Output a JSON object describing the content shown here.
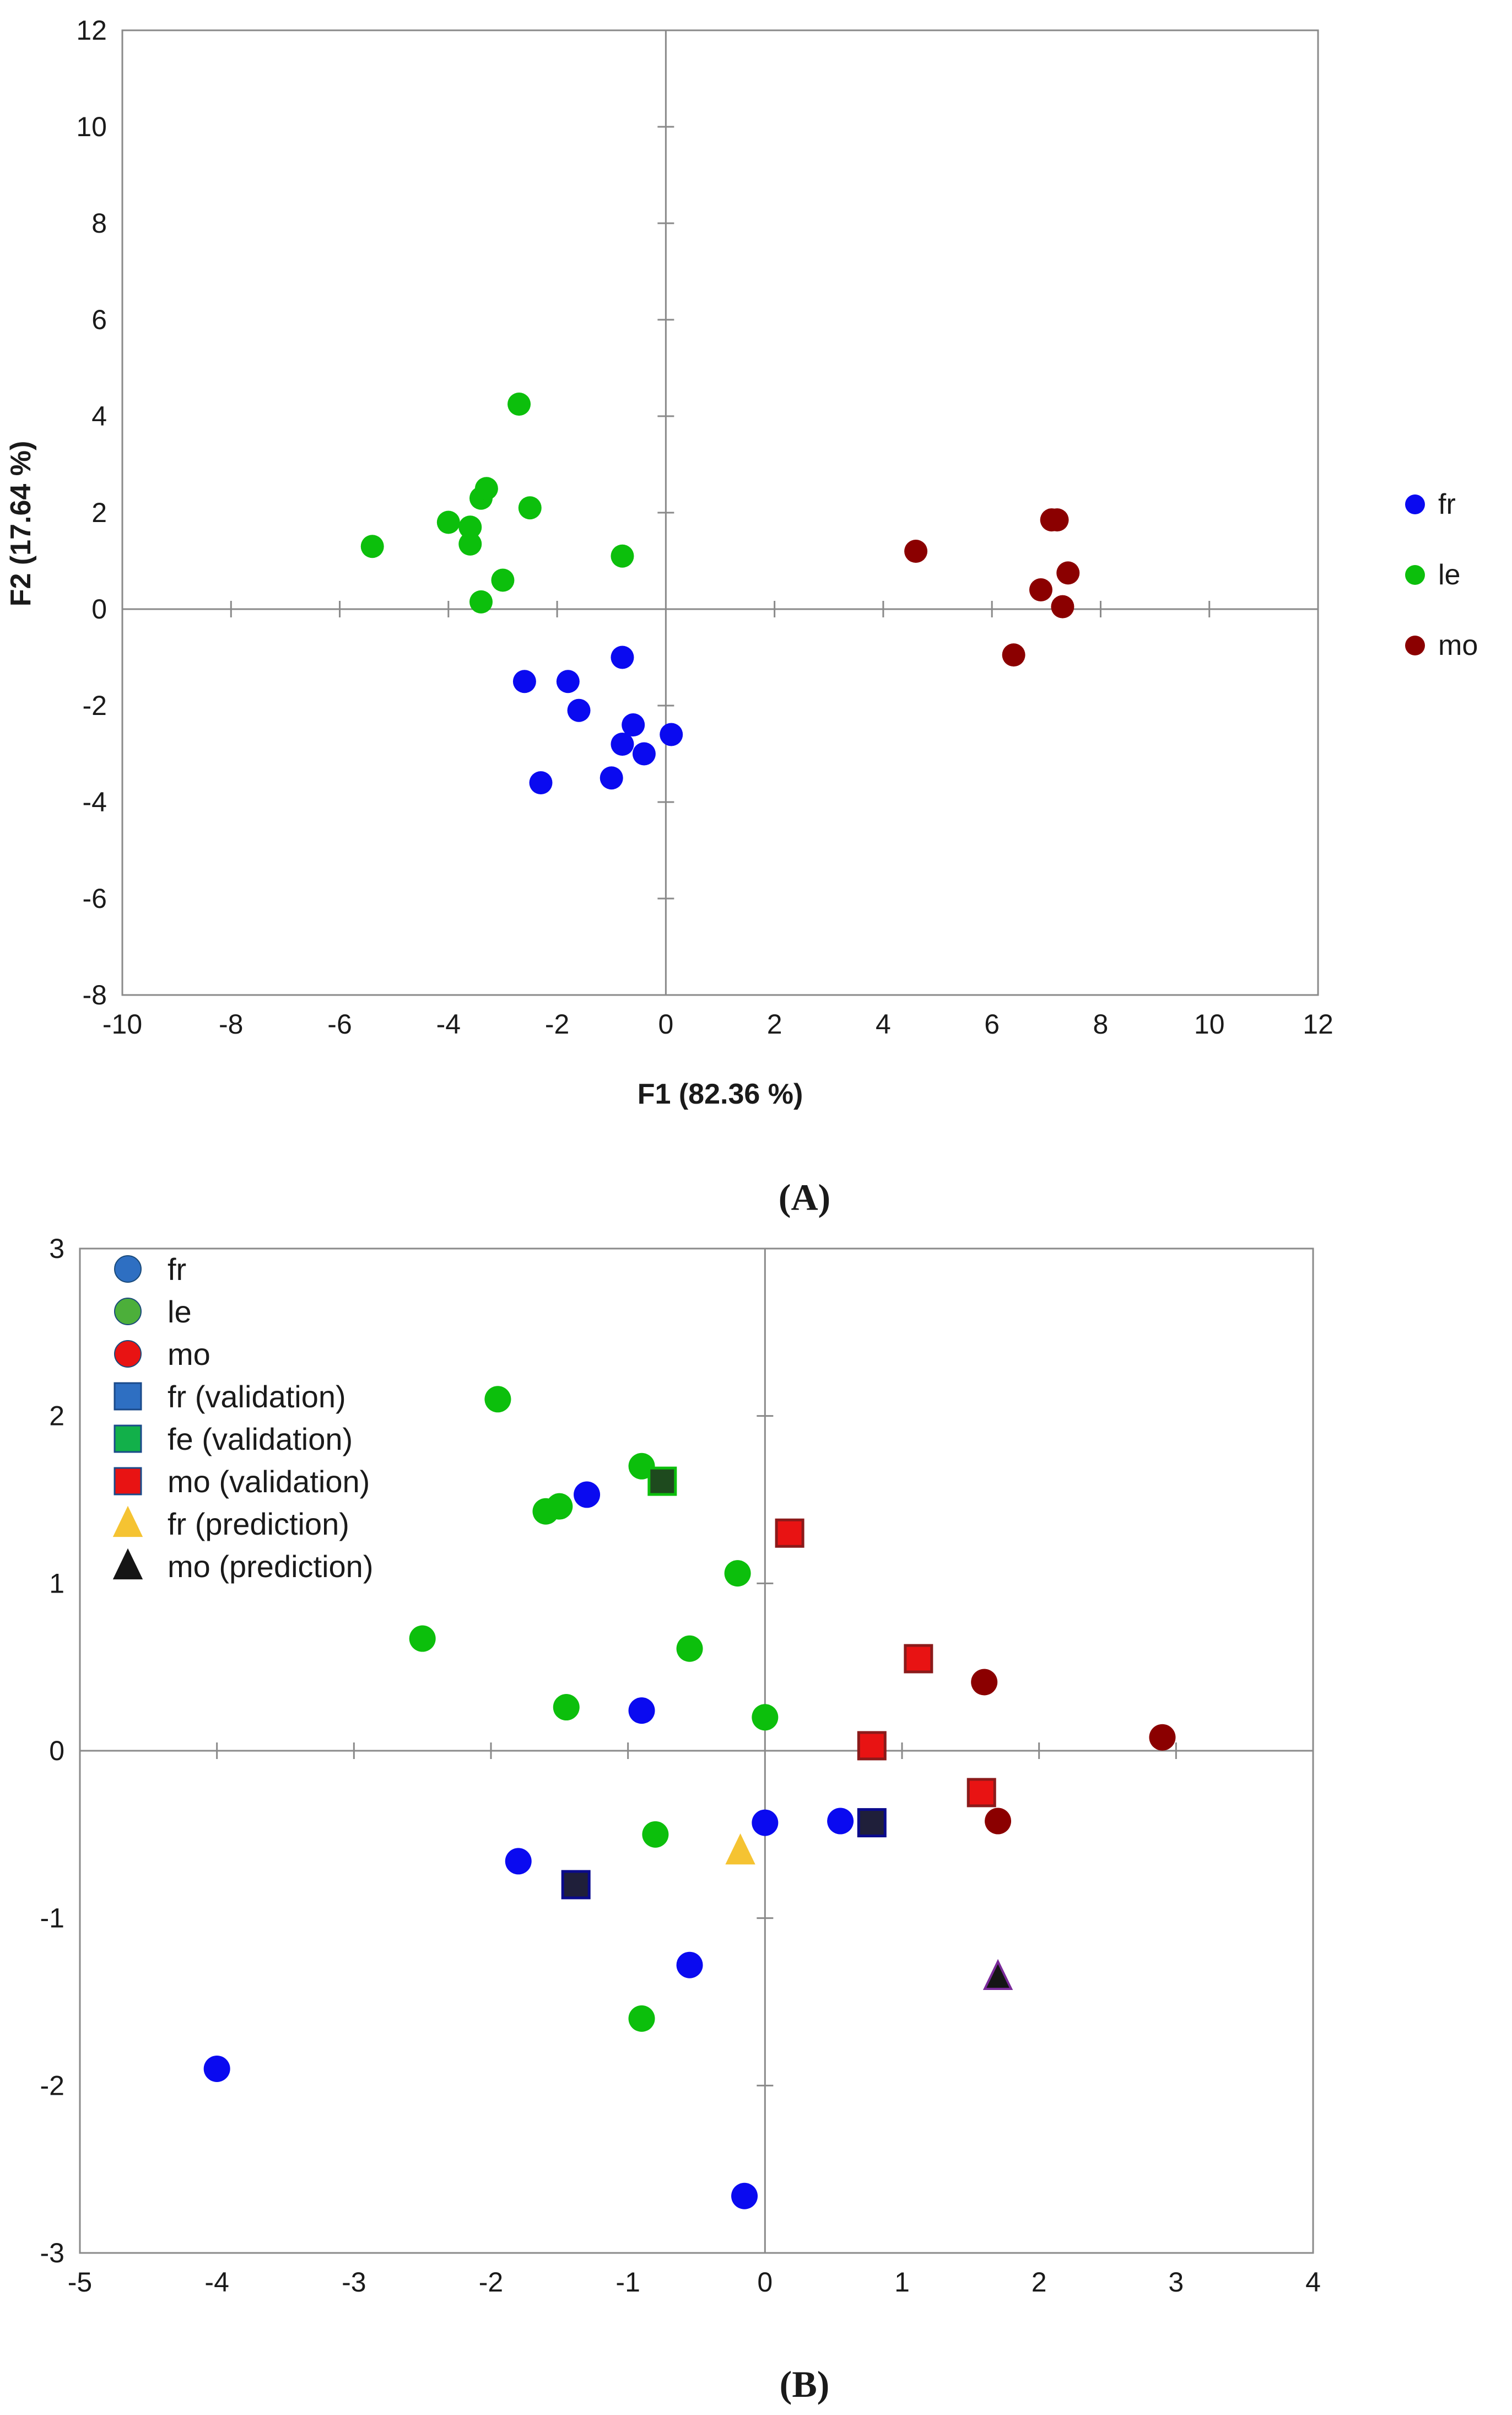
{
  "chart_data": [
    {
      "type": "scatter",
      "panel_label": "(A)",
      "xlabel": "F1 (82.36 %)",
      "ylabel": "F2 (17.64 %)",
      "xlim": [
        -10,
        12
      ],
      "ylim": [
        -8,
        12
      ],
      "xticks": [
        -10,
        -8,
        -6,
        -4,
        -2,
        0,
        2,
        4,
        6,
        8,
        10,
        12
      ],
      "yticks": [
        -8,
        -6,
        -4,
        -2,
        0,
        2,
        4,
        6,
        8,
        10,
        12
      ],
      "grid": false,
      "legend_position": "right",
      "series": [
        {
          "name": "fr",
          "marker": "circle",
          "color": "#0a0af0",
          "points": [
            [
              -2.6,
              -1.5
            ],
            [
              -1.8,
              -1.5
            ],
            [
              -1.6,
              -2.1
            ],
            [
              -0.8,
              -1.0
            ],
            [
              -2.3,
              -3.6
            ],
            [
              -1.0,
              -3.5
            ],
            [
              -0.8,
              -2.8
            ],
            [
              -0.6,
              -2.4
            ],
            [
              -0.4,
              -3.0
            ],
            [
              0.1,
              -2.6
            ]
          ]
        },
        {
          "name": "le",
          "marker": "circle",
          "color": "#0cbf0c",
          "points": [
            [
              -5.4,
              1.3
            ],
            [
              -4.0,
              1.8
            ],
            [
              -3.6,
              1.7
            ],
            [
              -3.6,
              1.35
            ],
            [
              -3.4,
              2.3
            ],
            [
              -3.3,
              2.5
            ],
            [
              -2.7,
              4.25
            ],
            [
              -2.5,
              2.1
            ],
            [
              -3.0,
              0.6
            ],
            [
              -3.4,
              0.15
            ],
            [
              -0.8,
              1.1
            ]
          ]
        },
        {
          "name": "mo",
          "marker": "circle",
          "color": "#8b0000",
          "points": [
            [
              4.6,
              1.2
            ],
            [
              7.1,
              1.85
            ],
            [
              7.2,
              1.85
            ],
            [
              6.9,
              0.4
            ],
            [
              7.4,
              0.75
            ],
            [
              7.3,
              0.05
            ],
            [
              6.4,
              -0.95
            ]
          ]
        }
      ]
    },
    {
      "type": "scatter",
      "panel_label": "(B)",
      "xlim": [
        -5,
        4
      ],
      "ylim": [
        -3,
        3
      ],
      "xticks": [
        -5,
        -4,
        -3,
        -2,
        -1,
        0,
        1,
        2,
        3,
        4
      ],
      "yticks": [
        -3,
        -2,
        -1,
        0,
        1,
        2,
        3
      ],
      "grid": false,
      "legend_position": "top-left",
      "series": [
        {
          "name": "fr",
          "marker": "circle",
          "color": "#0a0af0",
          "legend_color": "#2e6fc2",
          "points": [
            [
              -1.3,
              1.53
            ],
            [
              -0.9,
              0.24
            ],
            [
              0.0,
              -0.43
            ],
            [
              0.55,
              -0.42
            ],
            [
              -1.8,
              -0.66
            ],
            [
              -0.55,
              -1.28
            ],
            [
              -4.0,
              -1.9
            ],
            [
              -0.15,
              -2.66
            ]
          ]
        },
        {
          "name": "le",
          "marker": "circle",
          "color": "#0cbf0c",
          "legend_color": "#4caf3a",
          "points": [
            [
              -1.95,
              2.1
            ],
            [
              -0.9,
              1.7
            ],
            [
              -1.5,
              1.46
            ],
            [
              -1.6,
              1.43
            ],
            [
              -0.2,
              1.06
            ],
            [
              -2.5,
              0.67
            ],
            [
              -0.55,
              0.61
            ],
            [
              -1.45,
              0.26
            ],
            [
              0.0,
              0.2
            ],
            [
              -0.8,
              -0.5
            ],
            [
              -0.9,
              -1.6
            ]
          ]
        },
        {
          "name": "mo",
          "marker": "circle",
          "color": "#8b0000",
          "legend_color": "#e81313",
          "points": [
            [
              1.6,
              0.41
            ],
            [
              2.9,
              0.08
            ],
            [
              1.7,
              -0.42
            ]
          ]
        },
        {
          "name": "fr (validation)",
          "marker": "square",
          "color": "#0a0a8c",
          "fill": "#1f1f3a",
          "legend_color": "#2e6fc2",
          "points": [
            [
              0.78,
              -0.43
            ],
            [
              -1.38,
              -0.8
            ]
          ]
        },
        {
          "name": "fe (validation)",
          "marker": "square",
          "color": "#0cbf0c",
          "fill": "#1e4a1e",
          "legend_color": "#12b04a",
          "points": [
            [
              -0.75,
              1.61
            ]
          ]
        },
        {
          "name": "mo (validation)",
          "marker": "square",
          "color": "#8b1a1a",
          "fill": "#e81313",
          "legend_color": "#e81313",
          "points": [
            [
              0.18,
              1.3
            ],
            [
              1.12,
              0.55
            ],
            [
              0.78,
              0.03
            ],
            [
              1.58,
              -0.25
            ]
          ]
        },
        {
          "name": "fr (prediction)",
          "marker": "triangle",
          "color": "#f5c332",
          "fill": "#f5c332",
          "legend_color": "#f5c332",
          "points": [
            [
              -0.18,
              -0.6
            ]
          ]
        },
        {
          "name": "mo (prediction)",
          "marker": "triangle",
          "color": "#7a2a9a",
          "fill": "#151515",
          "legend_color": "#151515",
          "points": [
            [
              1.7,
              -1.35
            ]
          ]
        }
      ]
    }
  ]
}
